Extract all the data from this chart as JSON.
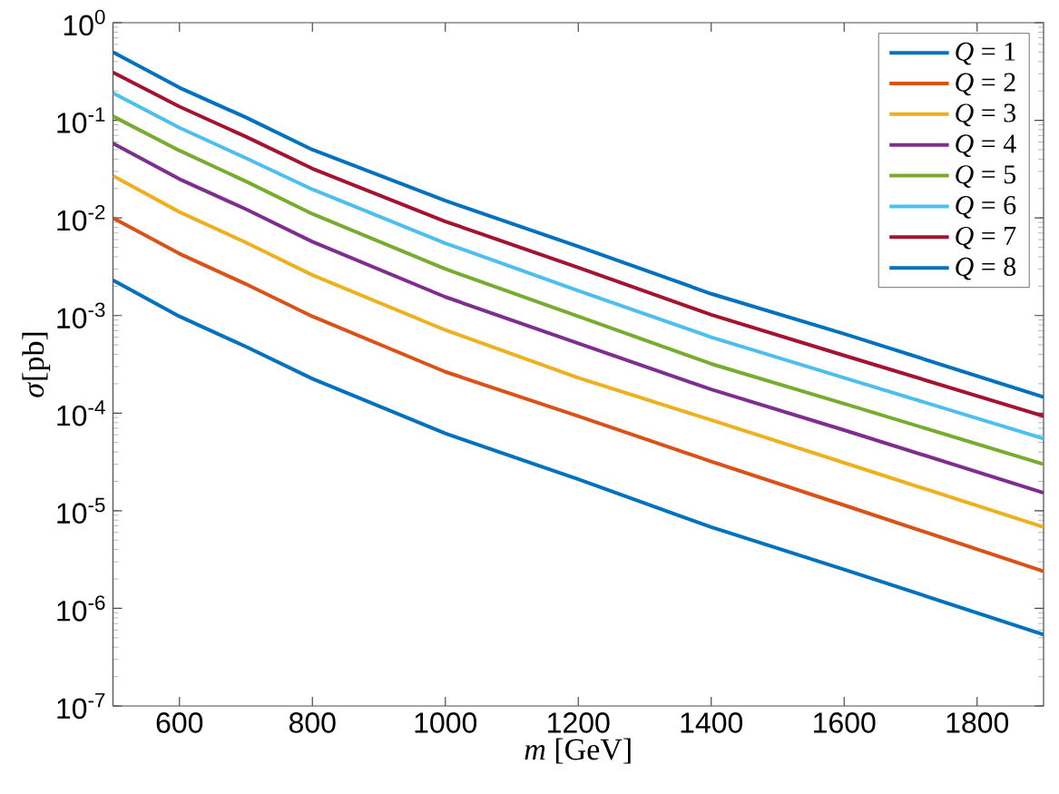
{
  "chart_data": {
    "type": "line",
    "xlabel": "*m* [GeV]",
    "ylabel": "*σ*[pb]",
    "log": "y",
    "grid": false,
    "legend": "top right",
    "x": [
      500,
      600,
      700,
      800,
      1000,
      1200,
      1400,
      1600,
      1900
    ],
    "xlim": [
      500,
      1900
    ],
    "xticks": [
      600,
      800,
      1000,
      1200,
      1400,
      1600,
      1800
    ],
    "ylim": [
      1e-07,
      1
    ],
    "yticks": [
      {
        "value": 1e-07,
        "label": "10$^{-7}$"
      },
      {
        "value": 1e-06,
        "label": "10$^{-6}$"
      },
      {
        "value": 1e-05,
        "label": "10$^{-5}$"
      },
      {
        "value": 0.0001,
        "label": "10$^{-4}$"
      },
      {
        "value": 0.001,
        "label": "10$^{-3}$"
      },
      {
        "value": 0.01,
        "label": "10$^{-2}$"
      },
      {
        "value": 0.1,
        "label": "10$^{-1}$"
      },
      {
        "value": 1,
        "label": "10$^{0}$"
      }
    ],
    "series": [
      {
        "name": "*Q* = 1",
        "color": "#0072bd",
        "values": [
          0.0023,
          0.00098,
          0.00048,
          0.000225,
          6.2e-05,
          2.1e-05,
          6.8e-06,
          2.5e-06,
          5.4e-07
        ]
      },
      {
        "name": "*Q* = 2",
        "color": "#d95319",
        "values": [
          0.01,
          0.0043,
          0.0021,
          0.00098,
          0.000265,
          9.3e-05,
          3.2e-05,
          1.14e-05,
          2.4e-06
        ]
      },
      {
        "name": "*Q* = 3",
        "color": "#edb120",
        "values": [
          0.027,
          0.0115,
          0.0056,
          0.0026,
          0.00071,
          0.00023,
          8.5e-05,
          3.1e-05,
          6.8e-06
        ]
      },
      {
        "name": "*Q* = 4",
        "color": "#7e2f8e",
        "values": [
          0.058,
          0.025,
          0.0123,
          0.0057,
          0.00155,
          0.00052,
          0.000175,
          6.7e-05,
          1.53e-05
        ]
      },
      {
        "name": "*Q* = 5",
        "color": "#77ac30",
        "values": [
          0.11,
          0.049,
          0.0237,
          0.011,
          0.003,
          0.00098,
          0.00032,
          0.000125,
          3e-05
        ]
      },
      {
        "name": "*Q* = 6",
        "color": "#4dbeee",
        "values": [
          0.19,
          0.084,
          0.041,
          0.0196,
          0.0055,
          0.0018,
          0.0006,
          0.00023,
          5.5e-05
        ]
      },
      {
        "name": "*Q* = 7",
        "color": "#a2142f",
        "values": [
          0.31,
          0.138,
          0.068,
          0.032,
          0.0092,
          0.0031,
          0.00102,
          0.00039,
          9.3e-05
        ]
      },
      {
        "name": "*Q* = 8",
        "color": "#0072bd",
        "values": [
          0.5,
          0.216,
          0.107,
          0.05,
          0.015,
          0.0051,
          0.00167,
          0.00065,
          0.000146
        ]
      }
    ]
  }
}
